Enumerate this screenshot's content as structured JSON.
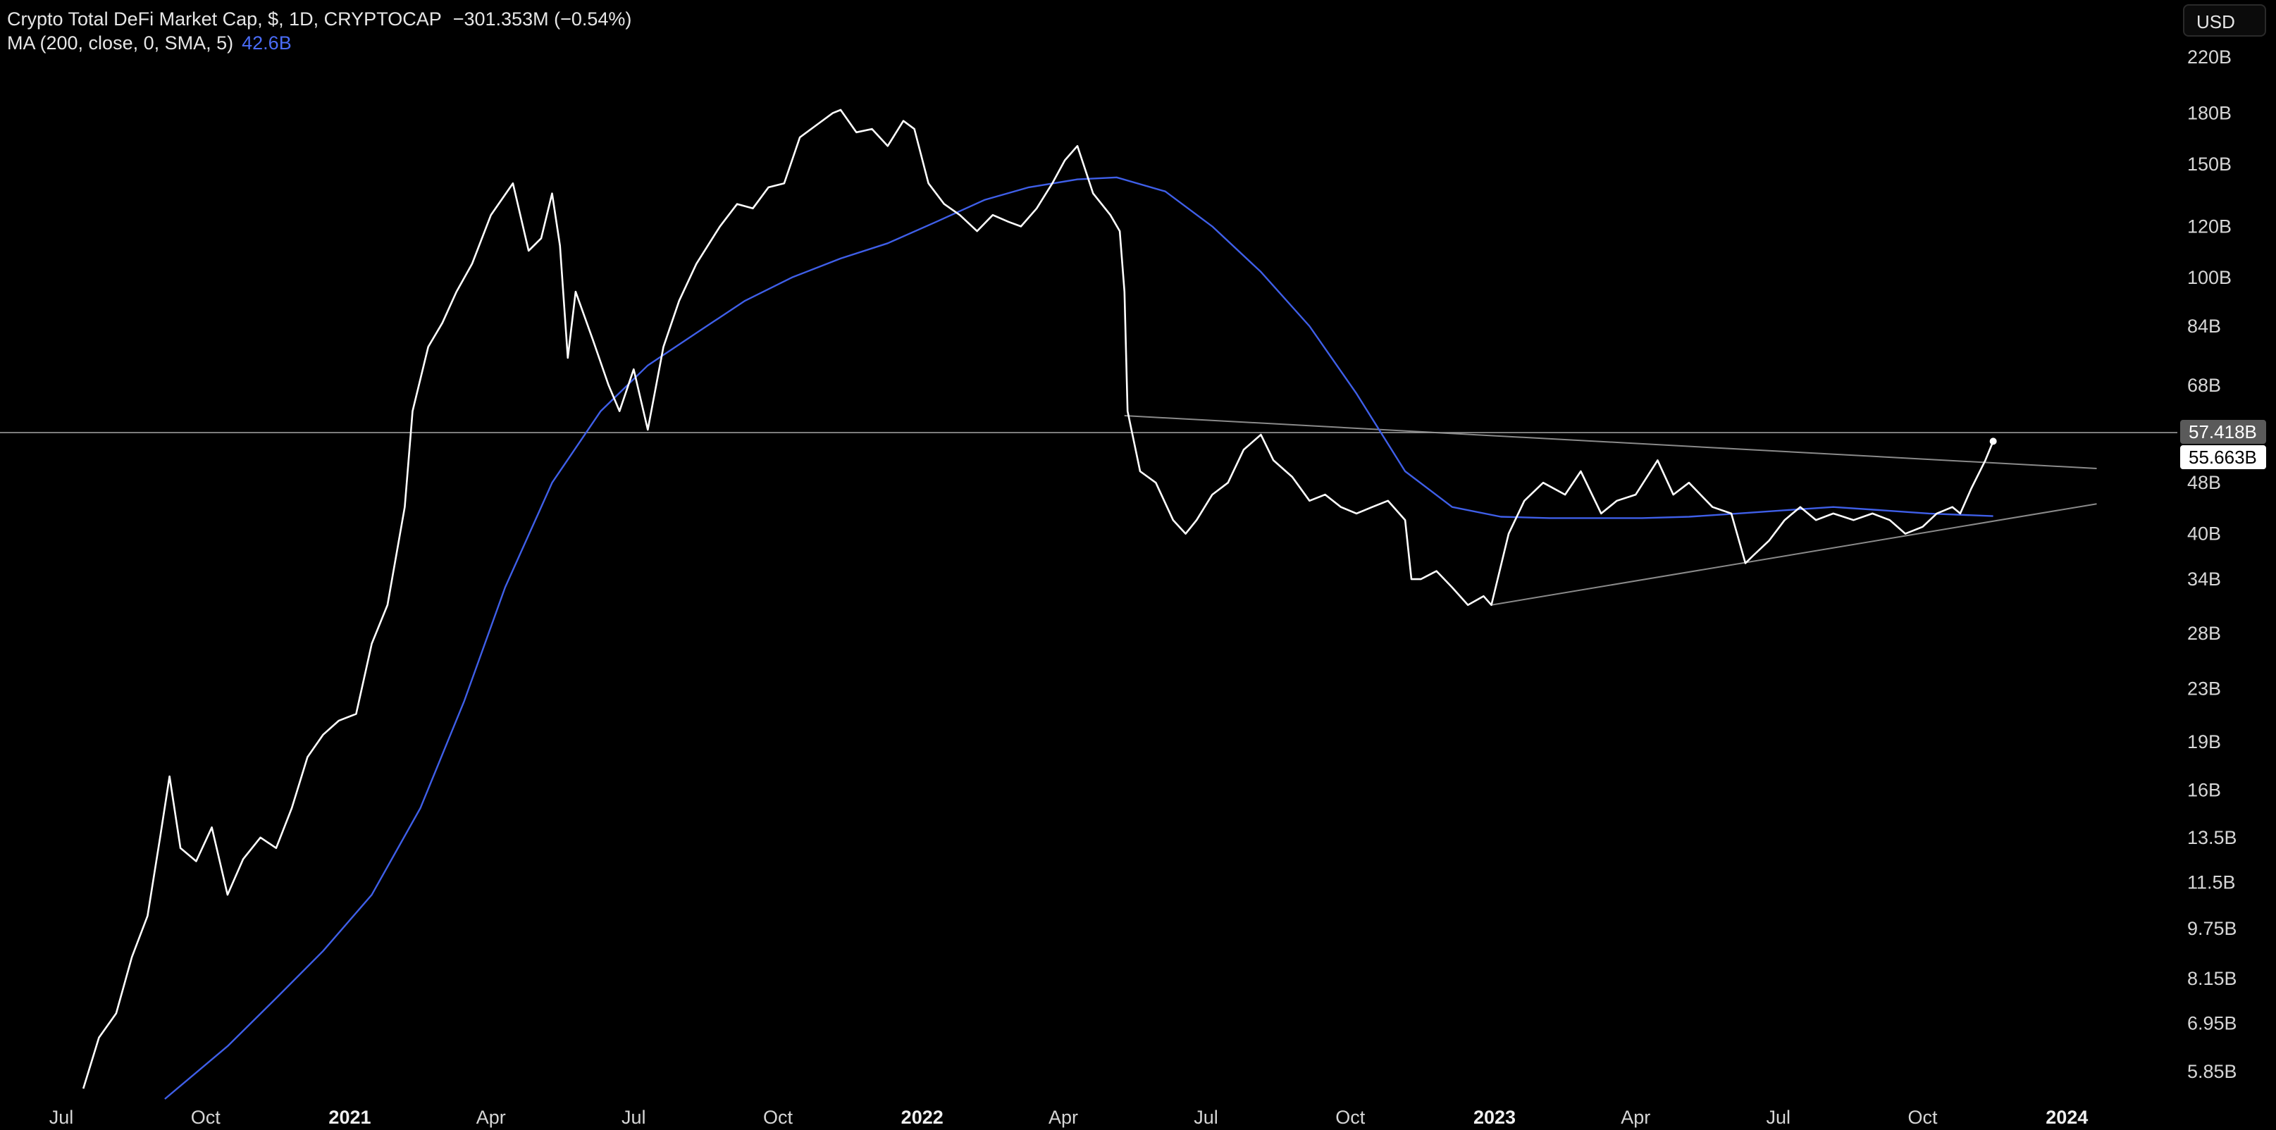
{
  "legend": {
    "title": "Crypto Total DeFi Market Cap, $, 1D, CRYPTOCAP",
    "change": "−301.353M (−0.54%)",
    "ma_label": "MA (200, close, 0, SMA, 5)",
    "ma_value": "42.6B"
  },
  "currency_button": "USD",
  "colors": {
    "background": "#000000",
    "price_line": "#ffffff",
    "ma_line": "#3f5fe8",
    "trend_lines": "#8a8a8a",
    "horizontal_line": "#9a9a9a",
    "ma_value_text": "#4a6cf7"
  },
  "chart_data": {
    "type": "line",
    "title": "Crypto Total DeFi Market Cap, $, 1D, CRYPTOCAP",
    "y_scale": "log",
    "y_unit": "B",
    "ylim": [
      5.3,
      250
    ],
    "xlim": [
      "2020-07-01",
      "2024-01-31"
    ],
    "grid": false,
    "x_tick_labels": [
      {
        "date": "2020-07-01",
        "label": "Jul",
        "bold": false
      },
      {
        "date": "2020-10-01",
        "label": "Oct",
        "bold": false
      },
      {
        "date": "2021-01-01",
        "label": "2021",
        "bold": true
      },
      {
        "date": "2021-04-01",
        "label": "Apr",
        "bold": false
      },
      {
        "date": "2021-07-01",
        "label": "Jul",
        "bold": false
      },
      {
        "date": "2021-10-01",
        "label": "Oct",
        "bold": false
      },
      {
        "date": "2022-01-01",
        "label": "2022",
        "bold": true
      },
      {
        "date": "2022-04-01",
        "label": "Apr",
        "bold": false
      },
      {
        "date": "2022-07-01",
        "label": "Jul",
        "bold": false
      },
      {
        "date": "2022-10-01",
        "label": "Oct",
        "bold": false
      },
      {
        "date": "2023-01-01",
        "label": "2023",
        "bold": true
      },
      {
        "date": "2023-04-01",
        "label": "Apr",
        "bold": false
      },
      {
        "date": "2023-07-01",
        "label": "Jul",
        "bold": false
      },
      {
        "date": "2023-10-01",
        "label": "Oct",
        "bold": false
      },
      {
        "date": "2024-01-01",
        "label": "2024",
        "bold": true
      }
    ],
    "y_tick_labels": [
      {
        "value": 220,
        "label": "220B"
      },
      {
        "value": 180,
        "label": "180B"
      },
      {
        "value": 150,
        "label": "150B"
      },
      {
        "value": 120,
        "label": "120B"
      },
      {
        "value": 100,
        "label": "100B"
      },
      {
        "value": 84,
        "label": "84B"
      },
      {
        "value": 68,
        "label": "68B"
      },
      {
        "value": 48,
        "label": "48B"
      },
      {
        "value": 40,
        "label": "40B"
      },
      {
        "value": 34,
        "label": "34B"
      },
      {
        "value": 28,
        "label": "28B"
      },
      {
        "value": 23,
        "label": "23B"
      },
      {
        "value": 19,
        "label": "19B"
      },
      {
        "value": 16,
        "label": "16B"
      },
      {
        "value": 13.5,
        "label": "13.5B"
      },
      {
        "value": 11.5,
        "label": "11.5B"
      },
      {
        "value": 9.75,
        "label": "9.75B"
      },
      {
        "value": 8.15,
        "label": "8.15B"
      },
      {
        "value": 6.95,
        "label": "6.95B"
      },
      {
        "value": 5.85,
        "label": "5.85B"
      }
    ],
    "series": [
      {
        "key": "price",
        "x": [
          "2020-07-15",
          "2020-07-25",
          "2020-08-05",
          "2020-08-15",
          "2020-08-25",
          "2020-09-02",
          "2020-09-08",
          "2020-09-15",
          "2020-09-25",
          "2020-10-05",
          "2020-10-15",
          "2020-10-25",
          "2020-11-05",
          "2020-11-15",
          "2020-11-25",
          "2020-12-05",
          "2020-12-15",
          "2020-12-25",
          "2021-01-05",
          "2021-01-15",
          "2021-01-25",
          "2021-02-05",
          "2021-02-10",
          "2021-02-20",
          "2021-03-01",
          "2021-03-10",
          "2021-03-20",
          "2021-04-01",
          "2021-04-15",
          "2021-04-25",
          "2021-05-03",
          "2021-05-10",
          "2021-05-15",
          "2021-05-20",
          "2021-05-25",
          "2021-06-05",
          "2021-06-15",
          "2021-06-22",
          "2021-07-01",
          "2021-07-10",
          "2021-07-20",
          "2021-07-30",
          "2021-08-10",
          "2021-08-25",
          "2021-09-05",
          "2021-09-15",
          "2021-09-25",
          "2021-10-05",
          "2021-10-15",
          "2021-10-25",
          "2021-11-05",
          "2021-11-10",
          "2021-11-20",
          "2021-11-30",
          "2021-12-10",
          "2021-12-20",
          "2021-12-27",
          "2022-01-05",
          "2022-01-15",
          "2022-01-25",
          "2022-02-05",
          "2022-02-15",
          "2022-02-25",
          "2022-03-05",
          "2022-03-15",
          "2022-03-25",
          "2022-04-02",
          "2022-04-10",
          "2022-04-20",
          "2022-05-01",
          "2022-05-07",
          "2022-05-10",
          "2022-05-12",
          "2022-05-20",
          "2022-05-30",
          "2022-06-10",
          "2022-06-18",
          "2022-06-25",
          "2022-07-05",
          "2022-07-15",
          "2022-07-25",
          "2022-08-05",
          "2022-08-13",
          "2022-08-25",
          "2022-09-05",
          "2022-09-15",
          "2022-09-25",
          "2022-10-05",
          "2022-10-15",
          "2022-10-25",
          "2022-11-05",
          "2022-11-09",
          "2022-11-15",
          "2022-11-25",
          "2022-12-05",
          "2022-12-15",
          "2022-12-25",
          "2022-12-30",
          "2023-01-10",
          "2023-01-20",
          "2023-02-01",
          "2023-02-15",
          "2023-02-25",
          "2023-03-10",
          "2023-03-20",
          "2023-04-01",
          "2023-04-15",
          "2023-04-25",
          "2023-05-05",
          "2023-05-20",
          "2023-06-01",
          "2023-06-10",
          "2023-06-15",
          "2023-06-25",
          "2023-07-05",
          "2023-07-15",
          "2023-07-25",
          "2023-08-05",
          "2023-08-18",
          "2023-08-30",
          "2023-09-10",
          "2023-09-20",
          "2023-10-01",
          "2023-10-10",
          "2023-10-20",
          "2023-10-25",
          "2023-11-01",
          "2023-11-10",
          "2023-11-15"
        ],
        "y": [
          5.5,
          6.6,
          7.2,
          8.8,
          10.2,
          13.5,
          16.8,
          13.0,
          12.4,
          14.0,
          11.0,
          12.5,
          13.5,
          13.0,
          15.0,
          18.0,
          19.5,
          20.5,
          21,
          27,
          31,
          44,
          62,
          78,
          85,
          95,
          105,
          125,
          140,
          110,
          115,
          135,
          112,
          75,
          95,
          80,
          68,
          62,
          72,
          58,
          78,
          92,
          105,
          120,
          130,
          128,
          138,
          140,
          165,
          172,
          180,
          182,
          168,
          170,
          160,
          175,
          170,
          140,
          130,
          125,
          118,
          125,
          122,
          120,
          128,
          140,
          152,
          160,
          135,
          125,
          118,
          95,
          62,
          50,
          48,
          42,
          40,
          42,
          46,
          48,
          54,
          57,
          52,
          49,
          45,
          46,
          44,
          43,
          44,
          45,
          42,
          34,
          34,
          35,
          33,
          31,
          32,
          31,
          40,
          45,
          48,
          46,
          50,
          43,
          45,
          46,
          52,
          46,
          48,
          44,
          43,
          36,
          37,
          39,
          42,
          44,
          42,
          43,
          42,
          43,
          42,
          40,
          41,
          43,
          44,
          43,
          47,
          52,
          55.663
        ],
        "last_value_label": "55.663B"
      },
      {
        "key": "ma",
        "name": "MA (200, close, 0, SMA, 5)",
        "x": [
          "2020-09-05",
          "2020-10-15",
          "2020-11-15",
          "2020-12-15",
          "2021-01-15",
          "2021-02-15",
          "2021-03-15",
          "2021-04-10",
          "2021-05-10",
          "2021-06-10",
          "2021-07-10",
          "2021-08-10",
          "2021-09-10",
          "2021-10-10",
          "2021-11-10",
          "2021-12-10",
          "2022-01-10",
          "2022-02-10",
          "2022-03-10",
          "2022-04-10",
          "2022-05-05",
          "2022-06-05",
          "2022-07-05",
          "2022-08-05",
          "2022-09-05",
          "2022-10-05",
          "2022-11-05",
          "2022-12-05",
          "2023-01-05",
          "2023-02-05",
          "2023-03-05",
          "2023-04-05",
          "2023-05-05",
          "2023-06-05",
          "2023-07-05",
          "2023-08-05",
          "2023-09-05",
          "2023-10-05",
          "2023-11-15"
        ],
        "y": [
          5.3,
          6.4,
          7.6,
          9.0,
          11.0,
          15.0,
          22.0,
          33.0,
          48.0,
          62.0,
          73.0,
          82.0,
          92.0,
          100.0,
          107.0,
          113.0,
          122.0,
          132.0,
          138.0,
          142.0,
          143.0,
          136.0,
          120.0,
          102.0,
          84.0,
          66.0,
          50.0,
          44.0,
          42.5,
          42.3,
          42.3,
          42.3,
          42.5,
          43.0,
          43.5,
          44.0,
          43.5,
          43.0,
          42.6
        ]
      }
    ],
    "trend_lines": [
      {
        "from": {
          "x": "2022-05-10",
          "y": 61
        },
        "to": {
          "x": "2024-01-20",
          "y": 50.5
        }
      },
      {
        "from": {
          "x": "2022-12-30",
          "y": 31
        },
        "to": {
          "x": "2024-01-20",
          "y": 44.5
        }
      }
    ],
    "horizontal_line": {
      "value": 57.418,
      "label": "57.418B"
    }
  }
}
